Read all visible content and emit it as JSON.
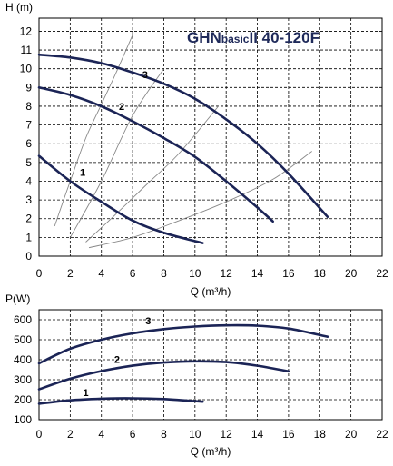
{
  "colors": {
    "curve": "#1b2456",
    "aux": "#888888",
    "grid": "#000000"
  },
  "chart_data": [
    {
      "type": "line",
      "title": "GHNbasicII 40-120F",
      "title_main": "GHN",
      "title_sub": "basic",
      "title_rest": "II  40-120F",
      "ylabel": "H (m)",
      "xlabel": "Q (m³/h)",
      "xlim": [
        0,
        22
      ],
      "ylim": [
        0,
        12.7
      ],
      "xticks": [
        0,
        2,
        4,
        6,
        8,
        10,
        12,
        14,
        16,
        18,
        20,
        22
      ],
      "yticks": [
        0,
        1,
        2,
        3,
        4,
        5,
        6,
        7,
        8,
        9,
        10,
        11,
        12
      ],
      "grid": true,
      "series": [
        {
          "name": "1",
          "label_at": [
            2.8,
            4.3
          ],
          "x": [
            0,
            2,
            4,
            6,
            8,
            10.5
          ],
          "y": [
            5.35,
            4.0,
            2.9,
            1.9,
            1.25,
            0.7
          ]
        },
        {
          "name": "2",
          "label_at": [
            5.3,
            7.8
          ],
          "x": [
            0,
            2,
            4,
            6,
            8,
            10,
            12,
            14,
            15
          ],
          "y": [
            9.0,
            8.6,
            8.0,
            7.2,
            6.3,
            5.3,
            4.0,
            2.6,
            1.85
          ]
        },
        {
          "name": "3",
          "label_at": [
            6.8,
            9.5
          ],
          "x": [
            0,
            2,
            4,
            6,
            8,
            10,
            12,
            14,
            16,
            18.5
          ],
          "y": [
            10.75,
            10.6,
            10.3,
            9.8,
            9.2,
            8.4,
            7.3,
            6.0,
            4.4,
            2.1
          ]
        }
      ],
      "aux_curves": [
        {
          "x": [
            1,
            2,
            3,
            4,
            5,
            6
          ],
          "y": [
            1.6,
            4.0,
            6.3,
            8.1,
            9.9,
            11.8
          ]
        },
        {
          "x": [
            2,
            4,
            6,
            8
          ],
          "y": [
            1.0,
            4.0,
            7.5,
            10.0
          ]
        },
        {
          "x": [
            3,
            5,
            7,
            9,
            11.5
          ],
          "y": [
            0.75,
            2.3,
            3.9,
            5.5,
            8.0
          ]
        },
        {
          "x": [
            3.2,
            6,
            9,
            12,
            15,
            17.5
          ],
          "y": [
            0.45,
            1.0,
            1.9,
            2.9,
            4.1,
            5.6
          ]
        }
      ]
    },
    {
      "type": "line",
      "ylabel": "P(W)",
      "xlabel": "Q (m³/h)",
      "xlim": [
        0,
        22
      ],
      "ylim": [
        100,
        650
      ],
      "xticks": [
        0,
        2,
        4,
        6,
        8,
        10,
        12,
        14,
        16,
        18,
        20,
        22
      ],
      "yticks": [
        100,
        200,
        300,
        400,
        500,
        600
      ],
      "grid": true,
      "series": [
        {
          "name": "1",
          "label_at": [
            3.0,
            218
          ],
          "x": [
            0,
            2,
            4,
            6,
            8,
            10.5
          ],
          "y": [
            180,
            197,
            205,
            207,
            203,
            190
          ]
        },
        {
          "name": "2",
          "label_at": [
            5.0,
            383
          ],
          "x": [
            0,
            2,
            4,
            6,
            8,
            10,
            12,
            14,
            16
          ],
          "y": [
            252,
            305,
            343,
            370,
            386,
            392,
            388,
            370,
            342
          ]
        },
        {
          "name": "3",
          "label_at": [
            7.0,
            578
          ],
          "x": [
            0,
            2,
            4,
            6,
            8,
            10,
            12,
            14,
            16,
            18.5
          ],
          "y": [
            382,
            455,
            500,
            532,
            553,
            566,
            572,
            570,
            556,
            515
          ]
        }
      ]
    }
  ]
}
